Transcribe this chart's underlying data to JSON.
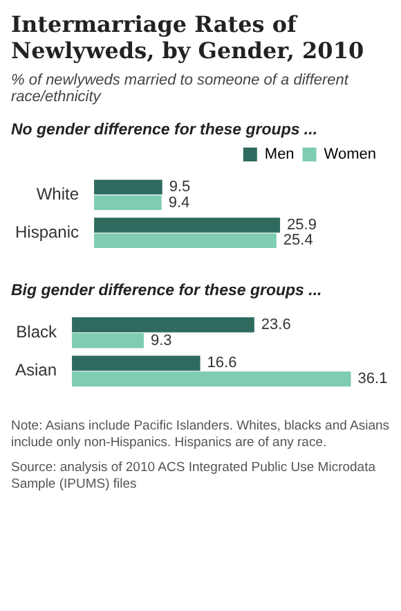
{
  "chart_data": [
    {
      "type": "bar",
      "orientation": "horizontal",
      "title": "Intermarriage Rates of Newlyweds, by Gender, 2010",
      "subtitle": "% of newlyweds married to someone of a different race/ethnicity",
      "annotations": [
        "No gender difference for these groups ..."
      ],
      "categories": [
        "White",
        "Hispanic"
      ],
      "series": [
        {
          "name": "Men",
          "color": "#2e6b5e",
          "values": [
            9.5,
            25.9
          ]
        },
        {
          "name": "Women",
          "color": "#7fccb3",
          "values": [
            9.4,
            25.4
          ]
        }
      ],
      "data_labels": true,
      "legend": "top right",
      "tick_labels": "y"
    },
    {
      "type": "bar",
      "orientation": "horizontal",
      "annotations": [
        "Big gender difference for these groups ...",
        "Note: Asians include Pacific Islanders. Whites, blacks and Asians include only non-Hispanics. Hispanics are of any race.",
        "Source: analysis of 2010 ACS Integrated Public Use Microdata Sample (IPUMS) files"
      ],
      "categories": [
        "Black",
        "Asian"
      ],
      "series": [
        {
          "color": "#2e6b5e",
          "values": [
            23.6,
            16.6
          ]
        },
        {
          "color": "#7fccb3",
          "values": [
            9.3,
            36.1
          ]
        }
      ],
      "data_labels": true,
      "legend": false,
      "tick_labels": "y"
    }
  ]
}
